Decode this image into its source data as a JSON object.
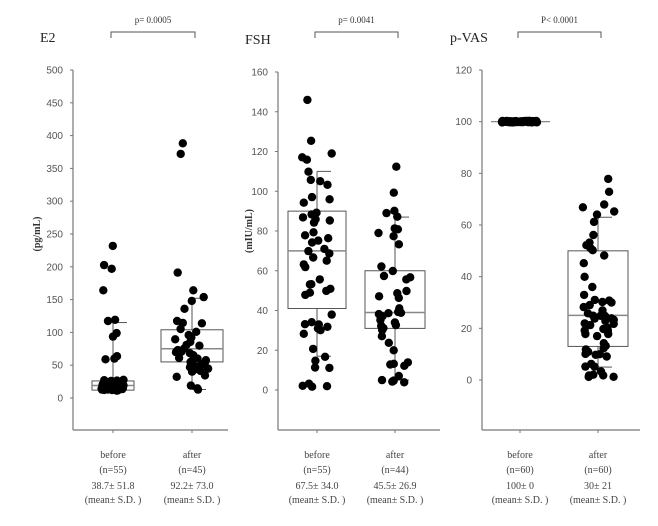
{
  "chart_data": [
    {
      "type": "box-scatter",
      "title": "E2",
      "ylabel": "(pg/mL)",
      "ylim": [
        -80,
        500
      ],
      "yticks": [
        0,
        50,
        100,
        150,
        200,
        250,
        300,
        350,
        400,
        450,
        500
      ],
      "p_value": "p= 0.0005",
      "groups": [
        {
          "name": "before",
          "n_label": "(n=55)",
          "mean_sd": "38.7± 51.8",
          "mean_label": "(mean± S.D. )",
          "box": {
            "whisker_low": 12,
            "q1": 12,
            "median": 19,
            "q3": 26,
            "whisker_high": 115
          },
          "points": [
            232,
            202,
            197,
            165,
            119,
            118,
            98,
            93,
            63,
            60,
            58,
            28,
            27,
            27,
            26,
            26,
            25,
            25,
            24,
            24,
            23,
            23,
            22,
            22,
            21,
            21,
            20,
            20,
            20,
            19,
            19,
            19,
            18,
            18,
            18,
            17,
            17,
            17,
            16,
            16,
            16,
            15,
            15,
            15,
            14,
            14,
            14,
            14,
            13,
            13,
            13,
            13,
            12,
            12,
            12
          ]
        },
        {
          "name": "after",
          "n_label": "(n=45)",
          "mean_sd": "92.2± 73.0",
          "mean_label": "(mean± S.D. )",
          "box": {
            "whisker_low": 13,
            "q1": 55,
            "median": 75,
            "q3": 104,
            "whisker_high": 152
          },
          "points": [
            389,
            371,
            190,
            165,
            153,
            147,
            136,
            117,
            114,
            113,
            104,
            100,
            95,
            92,
            90,
            86,
            82,
            80,
            75,
            73,
            72,
            70,
            70,
            68,
            66,
            65,
            62,
            60,
            58,
            56,
            55,
            55,
            52,
            50,
            48,
            46,
            45,
            44,
            42,
            40,
            35,
            32,
            20,
            14,
            12
          ]
        }
      ]
    },
    {
      "type": "box-scatter",
      "title": "FSH",
      "ylabel": "(mIU/mL)",
      "ylim": [
        -20,
        160
      ],
      "yticks": [
        0,
        20,
        40,
        60,
        80,
        100,
        120,
        140,
        160
      ],
      "p_value": "p= 0.0041",
      "groups": [
        {
          "name": "before",
          "n_label": "(n=55)",
          "mean_sd": "67.5± 34.0",
          "mean_label": "(mean± S.D. )",
          "box": {
            "whisker_low": 17,
            "q1": 41,
            "median": 70,
            "q3": 90,
            "whisker_high": 110
          },
          "points": [
            146,
            125,
            119,
            117,
            116,
            110,
            106,
            105,
            103,
            97,
            96,
            94,
            89,
            88,
            88,
            87,
            86,
            85,
            84,
            79,
            78,
            76,
            75,
            74,
            71,
            70,
            69,
            67,
            65,
            63,
            62,
            56,
            53,
            53,
            51,
            50,
            49,
            48,
            38,
            34,
            33,
            33,
            32,
            31,
            30,
            28,
            21,
            17,
            15,
            11,
            11,
            3,
            2,
            2,
            2
          ]
        },
        {
          "name": "after",
          "n_label": "(n=44)",
          "mean_sd": "45.5± 26.9",
          "mean_label": "(mean± S.D. )",
          "box": {
            "whisker_low": 5,
            "q1": 31,
            "median": 39,
            "q3": 60,
            "whisker_high": 87
          },
          "points": [
            112,
            99,
            90,
            89,
            87,
            81,
            81,
            79,
            77,
            73,
            62,
            60,
            57,
            57,
            56,
            50,
            49,
            47,
            46,
            41,
            39,
            39,
            39,
            38,
            37,
            35,
            34,
            33,
            32,
            32,
            31,
            30,
            27,
            24,
            20,
            14,
            13,
            13,
            12,
            7,
            5,
            5,
            4,
            4
          ]
        }
      ]
    },
    {
      "type": "box-scatter",
      "title": "p-VAS",
      "ylabel": "",
      "ylim": [
        -20,
        120
      ],
      "yticks": [
        0,
        20,
        40,
        60,
        80,
        100,
        120
      ],
      "p_value": "P< 0.0001",
      "groups": [
        {
          "name": "before",
          "n_label": "(n=60)",
          "mean_sd": "100± 0",
          "mean_label": "(mean± S.D. )",
          "box": {
            "whisker_low": 100,
            "q1": 100,
            "median": 100,
            "q3": 100,
            "whisker_high": 100
          },
          "points": [
            100,
            100,
            100,
            100,
            100,
            100,
            100,
            100,
            100,
            100,
            100,
            100,
            100,
            100,
            100,
            100,
            100,
            100,
            100,
            100,
            100,
            100,
            100,
            100,
            100,
            100,
            100,
            100,
            100,
            100,
            100,
            100,
            100,
            100,
            100,
            100,
            100,
            100,
            100,
            100,
            100,
            100,
            100,
            100,
            100,
            100,
            100,
            100,
            100,
            100,
            100,
            100,
            100,
            100,
            100,
            100,
            100,
            100,
            100,
            100
          ]
        },
        {
          "name": "after",
          "n_label": "(n=60)",
          "mean_sd": "30± 21",
          "mean_label": "(mean± S.D. )",
          "box": {
            "whisker_low": 5,
            "q1": 13,
            "median": 25,
            "q3": 50,
            "whisker_high": 63
          },
          "points": [
            78,
            73,
            68,
            67,
            65,
            64,
            61,
            56,
            53,
            52,
            51,
            50,
            48,
            45,
            40,
            36,
            33,
            31,
            31,
            30,
            30,
            29,
            28,
            27,
            26,
            25,
            25,
            25,
            24,
            24,
            23,
            23,
            22,
            22,
            21,
            20,
            20,
            19,
            19,
            18,
            18,
            17,
            14,
            13,
            12,
            12,
            11,
            10,
            10,
            10,
            9,
            6,
            5,
            5,
            3,
            2,
            2,
            2,
            1,
            1
          ]
        }
      ]
    }
  ]
}
